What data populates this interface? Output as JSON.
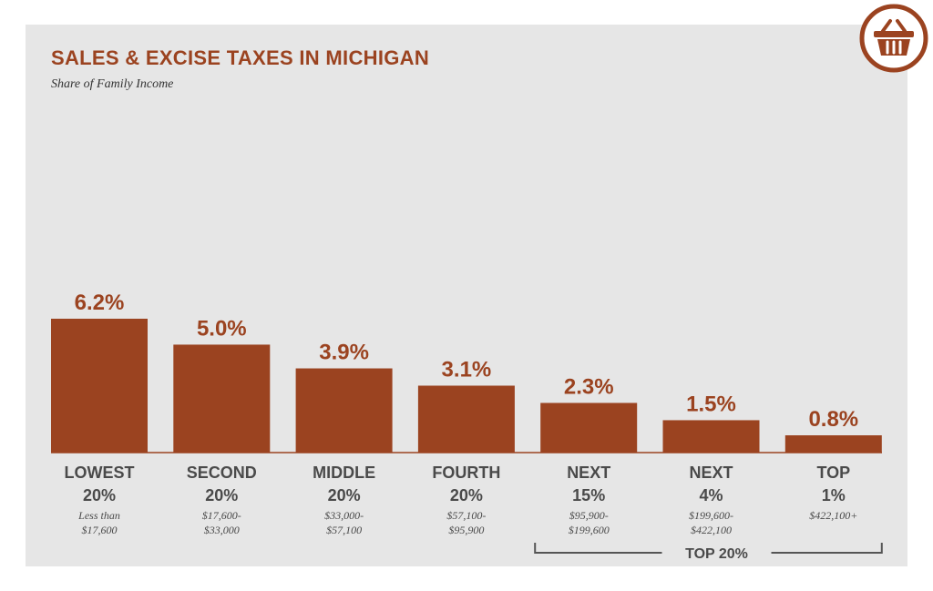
{
  "chart_data": {
    "type": "bar",
    "title": "SALES & EXCISE TAXES IN MICHIGAN",
    "subtitle": "Share of Family Income",
    "categories": [
      [
        "LOWEST",
        "20%"
      ],
      [
        "SECOND",
        "20%"
      ],
      [
        "MIDDLE",
        "20%"
      ],
      [
        "FOURTH",
        "20%"
      ],
      [
        "NEXT",
        "15%"
      ],
      [
        "NEXT",
        "4%"
      ],
      [
        "TOP",
        "1%"
      ]
    ],
    "income_ranges": [
      [
        "Less than",
        "$17,600"
      ],
      [
        "$17,600-",
        "$33,000"
      ],
      [
        "$33,000-",
        "$57,100"
      ],
      [
        "$57,100-",
        "$95,900"
      ],
      [
        "$95,900-",
        "$199,600"
      ],
      [
        "$199,600-",
        "$422,100"
      ],
      [
        "$422,100+"
      ]
    ],
    "values": [
      6.2,
      5.0,
      3.9,
      3.1,
      2.3,
      1.5,
      0.8
    ],
    "value_labels": [
      "6.2%",
      "5.0%",
      "3.9%",
      "3.1%",
      "2.3%",
      "1.5%",
      "0.8%"
    ],
    "ylim": [
      0,
      6.2
    ],
    "grid": false,
    "group_bracket": {
      "label": "TOP 20%",
      "from_index": 4,
      "to_index": 6
    },
    "colors": {
      "bar": "#9b4320",
      "title": "#9b4320",
      "panel": "#e6e6e6"
    }
  },
  "badge": {
    "icon": "shopping-basket-icon",
    "color": "#9b4320"
  }
}
